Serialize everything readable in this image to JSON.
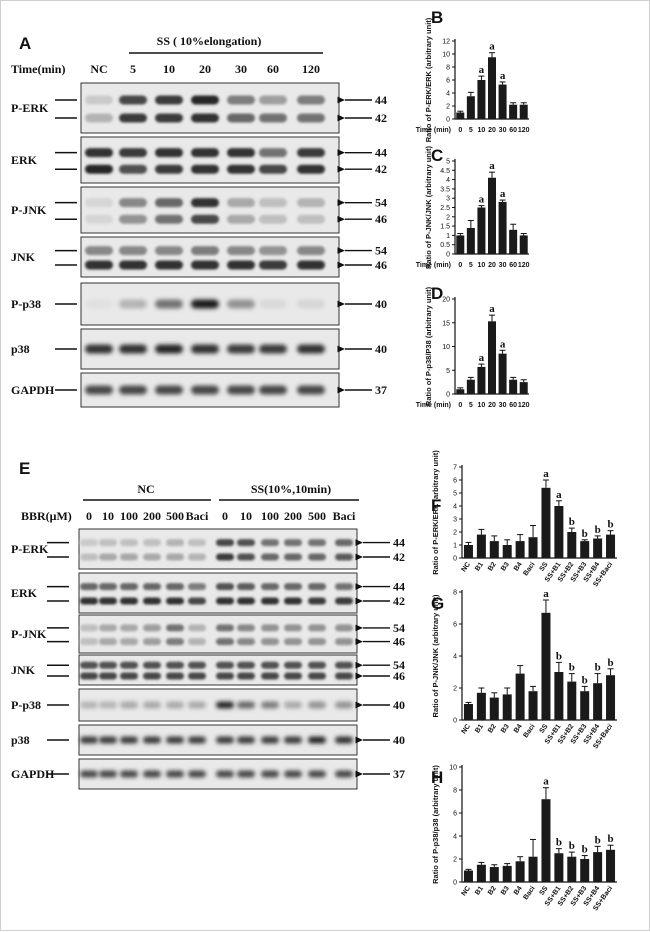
{
  "blot_a": {
    "panel": "A",
    "treatment": "SS ( 10%elongation)",
    "time_label": "Time(min)",
    "lanes": [
      "NC",
      "5",
      "10",
      "20",
      "30",
      "60",
      "120"
    ],
    "rows": [
      {
        "label": "P-ERK",
        "markers": [
          "44",
          "42"
        ],
        "bands": [
          [
            0.15,
            0.75,
            0.8,
            0.9,
            0.5,
            0.35,
            0.5
          ],
          [
            0.25,
            0.8,
            0.8,
            0.85,
            0.6,
            0.55,
            0.55
          ]
        ]
      },
      {
        "label": "ERK",
        "markers": [
          "44",
          "42"
        ],
        "bands": [
          [
            0.85,
            0.8,
            0.85,
            0.85,
            0.85,
            0.55,
            0.8
          ],
          [
            0.9,
            0.7,
            0.8,
            0.85,
            0.85,
            0.75,
            0.85
          ]
        ]
      },
      {
        "label": "P-JNK",
        "markers": [
          "54",
          "46"
        ],
        "bands": [
          [
            0.1,
            0.45,
            0.6,
            0.85,
            0.3,
            0.2,
            0.25
          ],
          [
            0.1,
            0.4,
            0.55,
            0.75,
            0.3,
            0.2,
            0.2
          ]
        ]
      },
      {
        "label": "JNK",
        "markers": [
          "54",
          "46"
        ],
        "bands": [
          [
            0.45,
            0.45,
            0.45,
            0.5,
            0.45,
            0.4,
            0.45
          ],
          [
            0.85,
            0.85,
            0.85,
            0.85,
            0.85,
            0.8,
            0.85
          ]
        ]
      },
      {
        "label": "P-p38",
        "markers": [
          "40"
        ],
        "bands": [
          [
            0.05,
            0.25,
            0.55,
            0.95,
            0.4,
            0.08,
            0.1
          ]
        ]
      },
      {
        "label": "p38",
        "markers": [
          "40"
        ],
        "bands": [
          [
            0.85,
            0.85,
            0.9,
            0.85,
            0.8,
            0.8,
            0.85
          ]
        ]
      },
      {
        "label": "GAPDH",
        "markers": [
          "37"
        ],
        "bands": [
          [
            0.75,
            0.75,
            0.75,
            0.75,
            0.75,
            0.75,
            0.75
          ]
        ]
      }
    ]
  },
  "blot_e": {
    "panel": "E",
    "groups": [
      "NC",
      "SS(10%,10min)"
    ],
    "dose_label": "BBR(μM)",
    "lanes": [
      "0",
      "10",
      "100",
      "200",
      "500",
      "Baci",
      "0",
      "10",
      "100",
      "200",
      "500",
      "Baci"
    ],
    "rows": [
      {
        "label": "P-ERK",
        "markers": [
          "44",
          "42"
        ],
        "bands": [
          [
            0.15,
            0.2,
            0.2,
            0.2,
            0.25,
            0.2,
            0.75,
            0.7,
            0.55,
            0.55,
            0.55,
            0.6
          ],
          [
            0.2,
            0.3,
            0.3,
            0.3,
            0.3,
            0.25,
            0.8,
            0.7,
            0.6,
            0.6,
            0.6,
            0.65
          ]
        ]
      },
      {
        "label": "ERK",
        "markers": [
          "44",
          "42"
        ],
        "bands": [
          [
            0.6,
            0.6,
            0.6,
            0.6,
            0.6,
            0.5,
            0.7,
            0.65,
            0.6,
            0.6,
            0.6,
            0.55
          ],
          [
            0.85,
            0.85,
            0.85,
            0.85,
            0.85,
            0.75,
            0.85,
            0.85,
            0.85,
            0.85,
            0.8,
            0.8
          ]
        ]
      },
      {
        "label": "P-JNK",
        "markers": [
          "54",
          "46"
        ],
        "bands": [
          [
            0.2,
            0.3,
            0.3,
            0.35,
            0.55,
            0.25,
            0.55,
            0.45,
            0.4,
            0.4,
            0.4,
            0.4
          ],
          [
            0.2,
            0.3,
            0.3,
            0.35,
            0.5,
            0.25,
            0.55,
            0.45,
            0.4,
            0.4,
            0.4,
            0.4
          ]
        ]
      },
      {
        "label": "JNK",
        "markers": [
          "54",
          "46"
        ],
        "bands": [
          [
            0.7,
            0.7,
            0.7,
            0.7,
            0.7,
            0.7,
            0.7,
            0.7,
            0.7,
            0.7,
            0.7,
            0.7
          ],
          [
            0.75,
            0.75,
            0.75,
            0.75,
            0.75,
            0.75,
            0.75,
            0.75,
            0.75,
            0.75,
            0.75,
            0.75
          ]
        ]
      },
      {
        "label": "P-p38",
        "markers": [
          "40"
        ],
        "bands": [
          [
            0.25,
            0.25,
            0.3,
            0.3,
            0.3,
            0.3,
            0.9,
            0.6,
            0.5,
            0.3,
            0.4,
            0.4
          ]
        ]
      },
      {
        "label": "p38",
        "markers": [
          "40"
        ],
        "bands": [
          [
            0.8,
            0.8,
            0.8,
            0.8,
            0.8,
            0.8,
            0.8,
            0.8,
            0.8,
            0.8,
            0.9,
            0.85
          ]
        ]
      },
      {
        "label": "GAPDH",
        "markers": [
          "37"
        ],
        "bands": [
          [
            0.75,
            0.75,
            0.75,
            0.75,
            0.75,
            0.75,
            0.75,
            0.75,
            0.75,
            0.75,
            0.75,
            0.75
          ]
        ]
      }
    ]
  },
  "chart_data": [
    {
      "panel": "B",
      "type": "bar",
      "ylabel": "Ratio of P-ERK/ERK (arbitrary unit)",
      "xlabel": "Time (min)",
      "categories": [
        "0",
        "5",
        "10",
        "20",
        "30",
        "60",
        "120"
      ],
      "values": [
        1.0,
        3.5,
        6.0,
        9.5,
        5.3,
        2.2,
        2.2
      ],
      "errors": [
        0.2,
        0.6,
        0.6,
        0.7,
        0.4,
        0.3,
        0.3
      ],
      "ylim": [
        0,
        12
      ],
      "yticks": [
        0,
        2,
        4,
        6,
        8,
        10,
        12
      ],
      "annotations": [
        "",
        "",
        "a",
        "a",
        "a",
        "",
        ""
      ]
    },
    {
      "panel": "C",
      "type": "bar",
      "ylabel": "Ratio of P-JNK/JNK (arbitrary unit)",
      "xlabel": "Time (min)",
      "categories": [
        "0",
        "5",
        "10",
        "20",
        "30",
        "60",
        "120"
      ],
      "values": [
        1.0,
        1.4,
        2.5,
        4.1,
        2.8,
        1.3,
        1.0
      ],
      "errors": [
        0.1,
        0.4,
        0.1,
        0.3,
        0.1,
        0.3,
        0.1
      ],
      "ylim": [
        0,
        5
      ],
      "yticks": [
        0.0,
        0.5,
        1.0,
        1.5,
        2.0,
        2.5,
        3.0,
        3.5,
        4.0,
        4.5,
        5.0
      ],
      "annotations": [
        "",
        "",
        "a",
        "a",
        "a",
        "",
        ""
      ]
    },
    {
      "panel": "D",
      "type": "bar",
      "ylabel": "Ratio of P-p38/P38 (arbitrary unit)",
      "xlabel": "Time (min)",
      "categories": [
        "0",
        "5",
        "10",
        "20",
        "30",
        "60",
        "120"
      ],
      "values": [
        1.0,
        3.0,
        5.7,
        15.3,
        8.5,
        3.0,
        2.5
      ],
      "errors": [
        0.3,
        0.5,
        0.6,
        1.3,
        0.7,
        0.5,
        0.5
      ],
      "ylim": [
        0,
        20
      ],
      "yticks": [
        0,
        5,
        10,
        15,
        20
      ],
      "annotations": [
        "",
        "",
        "a",
        "a",
        "a",
        "",
        ""
      ]
    },
    {
      "panel": "F",
      "type": "bar",
      "ylabel": "Ratio of P-ERK/ERK (arbitrary unit)",
      "categories": [
        "NC",
        "B1",
        "B2",
        "B3",
        "B4",
        "Baci",
        "SS",
        "SS+B1",
        "SS+B2",
        "SS+B3",
        "SS+B4",
        "SS+Baci"
      ],
      "values": [
        1.0,
        1.8,
        1.3,
        1.0,
        1.3,
        1.6,
        5.4,
        4.0,
        2.0,
        1.3,
        1.5,
        1.8
      ],
      "errors": [
        0.2,
        0.4,
        0.4,
        0.4,
        0.5,
        0.9,
        0.6,
        0.4,
        0.3,
        0.1,
        0.2,
        0.3
      ],
      "ylim": [
        0,
        7
      ],
      "yticks": [
        0,
        1,
        2,
        3,
        4,
        5,
        6,
        7
      ],
      "annotations": [
        "",
        "",
        "",
        "",
        "",
        "",
        "a",
        "a",
        "b",
        "b",
        "b",
        "b"
      ]
    },
    {
      "panel": "G",
      "type": "bar",
      "ylabel": "Ratio of P-JNK/JNK (arbitrary unit)",
      "categories": [
        "NC",
        "B1",
        "B2",
        "B3",
        "B4",
        "Baci",
        "SS",
        "SS+B1",
        "SS+B2",
        "SS+B3",
        "SS+B4",
        "SS+Baci"
      ],
      "values": [
        1.0,
        1.7,
        1.4,
        1.6,
        2.9,
        1.8,
        6.7,
        3.0,
        2.4,
        1.8,
        2.3,
        2.8
      ],
      "errors": [
        0.1,
        0.3,
        0.3,
        0.4,
        0.5,
        0.3,
        0.8,
        0.6,
        0.5,
        0.3,
        0.6,
        0.4
      ],
      "ylim": [
        0,
        8
      ],
      "yticks": [
        0,
        2,
        4,
        6,
        8
      ],
      "annotations": [
        "",
        "",
        "",
        "",
        "",
        "",
        "a",
        "b",
        "b",
        "b",
        "b",
        "b"
      ]
    },
    {
      "panel": "H",
      "type": "bar",
      "ylabel": "Ratio of P-p38/p38 (arbitrary unit)",
      "categories": [
        "NC",
        "B1",
        "B2",
        "B3",
        "B4",
        "Baci",
        "SS",
        "SS+B1",
        "SS+B2",
        "SS+B3",
        "SS+B4",
        "SS+Baci"
      ],
      "values": [
        1.0,
        1.5,
        1.3,
        1.4,
        1.8,
        2.2,
        7.2,
        2.5,
        2.2,
        2.0,
        2.6,
        2.8
      ],
      "errors": [
        0.1,
        0.2,
        0.2,
        0.2,
        0.4,
        1.5,
        1.0,
        0.4,
        0.4,
        0.3,
        0.5,
        0.4
      ],
      "ylim": [
        0,
        10
      ],
      "yticks": [
        0,
        2,
        4,
        6,
        8,
        10
      ],
      "annotations": [
        "",
        "",
        "",
        "",
        "",
        "",
        "a",
        "b",
        "b",
        "b",
        "b",
        "b"
      ]
    }
  ]
}
